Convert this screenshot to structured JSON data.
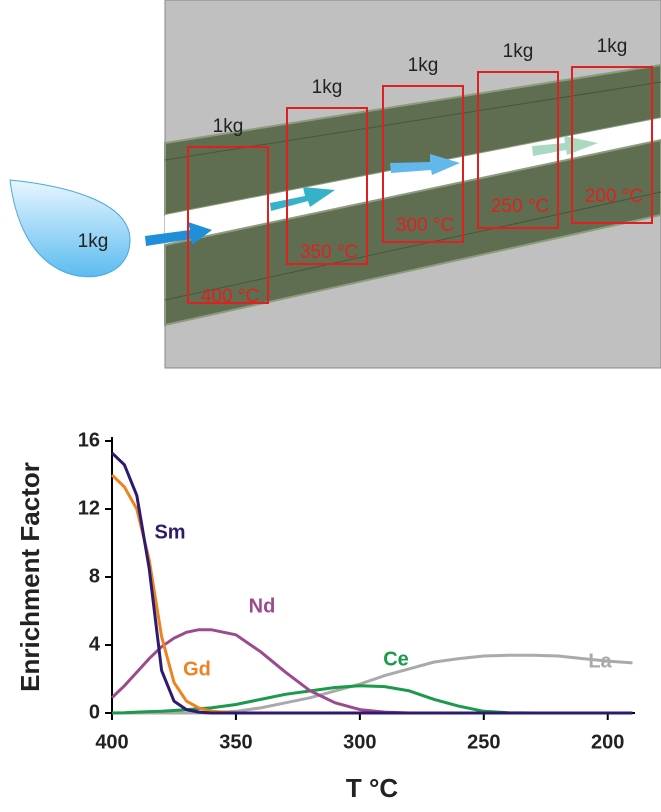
{
  "diagram": {
    "source_label": "1kg",
    "stages": [
      {
        "mass": "1kg",
        "temperature": "400 °C"
      },
      {
        "mass": "1kg",
        "temperature": "350 °C"
      },
      {
        "mass": "1kg",
        "temperature": "300 °C"
      },
      {
        "mass": "1kg",
        "temperature": "250 °C"
      },
      {
        "mass": "1kg",
        "temperature": "200 °C"
      }
    ]
  },
  "chart_data": {
    "type": "line",
    "x_label": "T °C",
    "y_label": "Enrichment Factor",
    "x": [
      400,
      395,
      390,
      385,
      380,
      375,
      370,
      365,
      360,
      350,
      340,
      330,
      320,
      310,
      300,
      290,
      280,
      270,
      260,
      250,
      240,
      230,
      220,
      210,
      200,
      190
    ],
    "xlim": [
      400,
      189
    ],
    "xticks": [
      400,
      350,
      300,
      250,
      200
    ],
    "ylim": [
      0,
      16
    ],
    "yticks": [
      0,
      4,
      8,
      12,
      16
    ],
    "series": [
      {
        "name": "Sm",
        "color": "#2e1a6e",
        "values": [
          15.3,
          14.6,
          12.8,
          8.5,
          2.5,
          0.7,
          0.2,
          0.05,
          0,
          0,
          0,
          0,
          0,
          0,
          0,
          0,
          0,
          0,
          0,
          0,
          0,
          0,
          0,
          0,
          0,
          0
        ]
      },
      {
        "name": "Gd",
        "color": "#ef8220",
        "values": [
          14,
          13.3,
          12,
          9,
          4.5,
          1.8,
          0.7,
          0.3,
          0.1,
          0,
          0,
          0,
          0,
          0,
          0,
          0,
          0,
          0,
          0,
          0,
          0,
          0,
          0,
          0,
          0,
          0
        ]
      },
      {
        "name": "Nd",
        "color": "#9b4a8e",
        "values": [
          0.9,
          1.6,
          2.4,
          3.2,
          3.9,
          4.4,
          4.75,
          4.9,
          4.9,
          4.6,
          3.6,
          2.4,
          1.3,
          0.6,
          0.2,
          0.05,
          0,
          0,
          0,
          0,
          0,
          0,
          0,
          0,
          0,
          0
        ]
      },
      {
        "name": "Ce",
        "color": "#1a9a4a",
        "values": [
          0,
          0.02,
          0.05,
          0.08,
          0.1,
          0.15,
          0.2,
          0.25,
          0.3,
          0.5,
          0.8,
          1.1,
          1.3,
          1.5,
          1.6,
          1.55,
          1.3,
          0.8,
          0.4,
          0.1,
          0.02,
          0,
          0,
          0,
          0,
          0
        ]
      },
      {
        "name": "La",
        "color": "#aaaaaa",
        "values": [
          0,
          0,
          0,
          0,
          0,
          0,
          0,
          0,
          0,
          0.1,
          0.3,
          0.6,
          0.9,
          1.3,
          1.7,
          2.2,
          2.6,
          3.0,
          3.2,
          3.35,
          3.4,
          3.4,
          3.35,
          3.2,
          3.05,
          2.95
        ]
      }
    ]
  }
}
